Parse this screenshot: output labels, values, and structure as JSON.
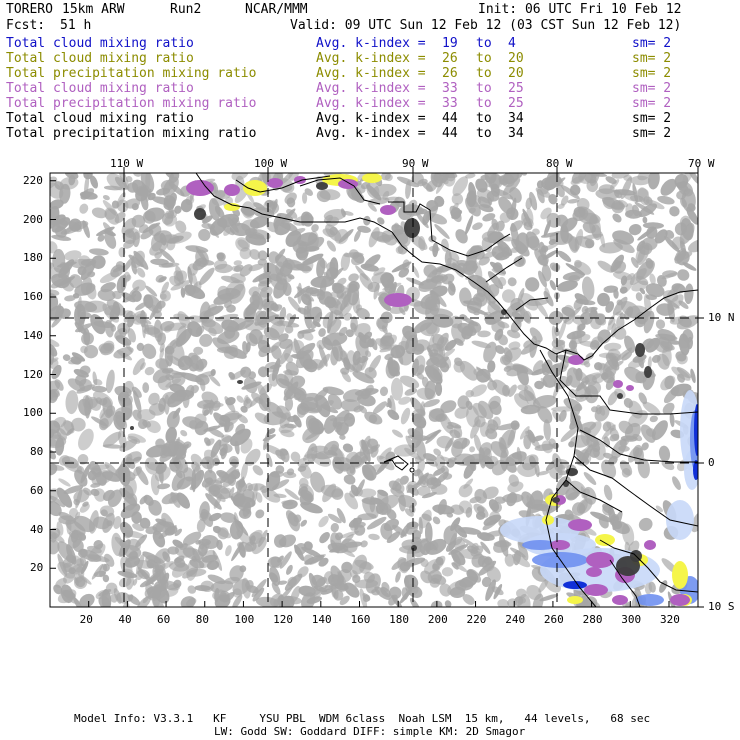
{
  "header": {
    "model": "TORERO",
    "resolution": "15km ARW",
    "run": "Run2",
    "org": "NCAR/MMM",
    "init": "Init: 06 UTC Fri 10 Feb 12",
    "fcst_label": "Fcst:",
    "fcst_value": "51 h",
    "valid": "Valid: 09 UTC Sun 12 Feb 12 (03 CST Sun 12 Feb 12)"
  },
  "legend": [
    {
      "field": "Total cloud mixing ratio",
      "avg": "Avg. k-index =",
      "k1": "19",
      "to": "to",
      "k2": "4",
      "sm": "sm= 2",
      "color": "#1010c8"
    },
    {
      "field": "Total cloud mixing ratio",
      "avg": "Avg. k-index =",
      "k1": "26",
      "to": "to",
      "k2": "20",
      "sm": "sm= 2",
      "color": "#8c8c00"
    },
    {
      "field": "Total precipitation mixing ratio",
      "avg": "Avg. k-index =",
      "k1": "26",
      "to": "to",
      "k2": "20",
      "sm": "sm= 2",
      "color": "#8c8c00"
    },
    {
      "field": "Total cloud mixing ratio",
      "avg": "Avg. k-index =",
      "k1": "33",
      "to": "to",
      "k2": "25",
      "sm": "sm= 2",
      "color": "#b060c0"
    },
    {
      "field": "Total precipitation mixing ratio",
      "avg": "Avg. k-index =",
      "k1": "33",
      "to": "to",
      "k2": "25",
      "sm": "sm= 2",
      "color": "#b060c0"
    },
    {
      "field": "Total cloud mixing ratio",
      "avg": "Avg. k-index =",
      "k1": "44",
      "to": "to",
      "k2": "34",
      "sm": "sm= 2",
      "color": "#000000"
    },
    {
      "field": "Total precipitation mixing ratio",
      "avg": "Avg. k-index =",
      "k1": "44",
      "to": "to",
      "k2": "34",
      "sm": "sm= 2",
      "color": "#000000"
    }
  ],
  "map": {
    "lon_labels": [
      "110 W",
      "100 W",
      "90 W",
      "80 W",
      "70 W"
    ],
    "lat_labels": [
      "10 N",
      "0",
      "10 S"
    ],
    "x_ticks": [
      "20",
      "40",
      "60",
      "80",
      "100",
      "120",
      "140",
      "160",
      "180",
      "200",
      "220",
      "240",
      "260",
      "280",
      "300",
      "320"
    ],
    "y_ticks": [
      "20",
      "40",
      "60",
      "80",
      "100",
      "120",
      "140",
      "160",
      "180",
      "200",
      "220"
    ]
  },
  "footer": {
    "line1": "Model Info: V3.3.1   KF     YSU PBL  WDM 6class  Noah LSM  15 km,   44 levels,   68 sec",
    "line2": "LW: Godd SW: Goddard DIFF: simple KM: 2D Smagor"
  },
  "colors": {
    "cloud_gray": "#a6a6a6",
    "dark_gray": "#3c3c3c",
    "yellow": "#f5f54a",
    "purple": "#b060c0",
    "blue_light": "#c8d8f8",
    "blue_mid": "#6f90f0",
    "blue_dark": "#1030d8"
  }
}
